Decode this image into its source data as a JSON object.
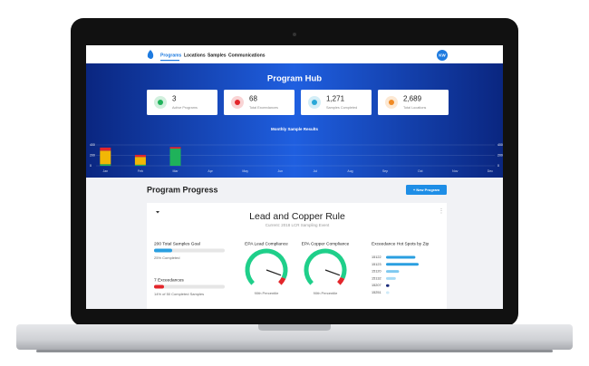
{
  "nav": {
    "links": [
      "Programs",
      "Locations",
      "Samples",
      "Communications"
    ],
    "avatar": "KW"
  },
  "hub": {
    "title": "Program Hub",
    "cards": [
      {
        "value": "3",
        "label": "Active Programs"
      },
      {
        "value": "68",
        "label": "Total Exceedances"
      },
      {
        "value": "1,271",
        "label": "Samples Completed"
      },
      {
        "value": "2,689",
        "label": "Total Locations"
      }
    ],
    "chart": {
      "type": "bar",
      "title": "Monthly Sample Results",
      "categories": [
        "Jan",
        "Feb",
        "Mar",
        "Apr",
        "May",
        "Jun",
        "Jul",
        "Aug",
        "Sep",
        "Oct",
        "Nov",
        "Dec"
      ],
      "ylim": [
        0,
        400
      ],
      "yticks": [
        0,
        200,
        400
      ],
      "series": [
        {
          "color": "#1fb25a",
          "values": [
            30,
            20,
            330,
            null,
            null,
            null,
            null,
            null,
            null,
            null,
            null,
            null
          ]
        },
        {
          "color": "#f2b705",
          "values": [
            260,
            150,
            0,
            null,
            null,
            null,
            null,
            null,
            null,
            null,
            null,
            null
          ]
        },
        {
          "color": "#e3262b",
          "values": [
            60,
            40,
            30,
            null,
            null,
            null,
            null,
            null,
            null,
            null,
            null,
            null
          ]
        }
      ]
    }
  },
  "progress": {
    "title": "Program Progress",
    "button": "+ New Program",
    "card": {
      "title": "Lead and Copper Rule",
      "subtitle": "Current: 2018 LCR Sampling Event",
      "goal": "200 Total Samples Goal",
      "goal_note": "25% Completed",
      "exceedances": "7 Exceedances",
      "exceed_note": "14% of 50 Completed Samples",
      "gauges": [
        {
          "title": "EPA Lead Compliance",
          "note": "90th Percentile"
        },
        {
          "title": "EPA Copper Compliance",
          "note": "90th Percentile"
        }
      ],
      "hotspots": {
        "title": "Exceedance Hot Spots by Zip",
        "zips": [
          "15122",
          "15123",
          "15120",
          "15132",
          "15207",
          "15251"
        ],
        "values": [
          9,
          10,
          4,
          3,
          1,
          1
        ],
        "colors": [
          "#2a9fe0",
          "#2a9fe0",
          "#7fc9f0",
          "#a8dbf5",
          "#1a2a7a",
          "#cfeaf8"
        ]
      }
    }
  }
}
